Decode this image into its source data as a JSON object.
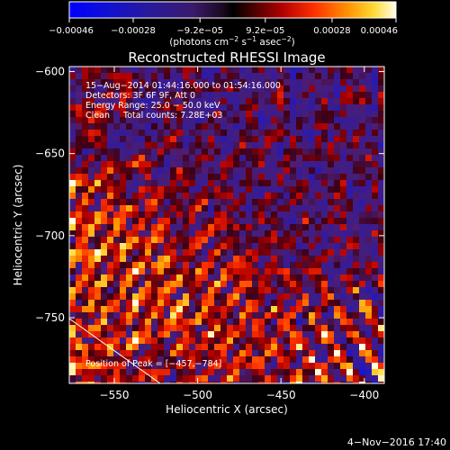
{
  "chart_data": {
    "type": "heatmap",
    "title": "Reconstructed RHESSI Image",
    "xlabel": "Heliocentric X (arcsec)",
    "ylabel": "Heliocentric Y (arcsec)",
    "xlim": [
      -577,
      -388
    ],
    "ylim": [
      -790,
      -597
    ],
    "x_ticks": [
      -550,
      -500,
      -450,
      -400
    ],
    "y_ticks": [
      -600,
      -650,
      -700,
      -750
    ],
    "x_tick_labels": [
      "−550",
      "−500",
      "−450",
      "−400"
    ],
    "y_tick_labels": [
      "−600",
      "−650",
      "−700",
      "−750"
    ],
    "colorbar": {
      "min": -0.00046,
      "max": 0.00046,
      "ticks": [
        -0.00046,
        -0.00028,
        -9.2e-05,
        9.2e-05,
        0.00028,
        0.00046
      ],
      "tick_labels": [
        "−0.00046",
        "−0.00028",
        "−9.2e−05",
        "9.2e−05",
        "0.00028",
        "0.00046"
      ],
      "unit_main": "(photons cm",
      "unit_exp1": "−2",
      "unit_mid": " s",
      "unit_exp2": "−1",
      "unit_tail": " asec",
      "unit_exp3": "−2",
      "unit_close": ")"
    },
    "annotations": [
      "15−Aug−2014 01:44:16.000 to 01:54:16.000",
      "Detectors: 3F 6F 9F, Att 0",
      "Energy Range: 25.0 − 50.0 keV",
      "Clean     Total counts: 7.28E+03"
    ],
    "peak_label": "Position of Peak = [−457,−784]",
    "footer_date": "4−Nov−2016 17:40"
  }
}
